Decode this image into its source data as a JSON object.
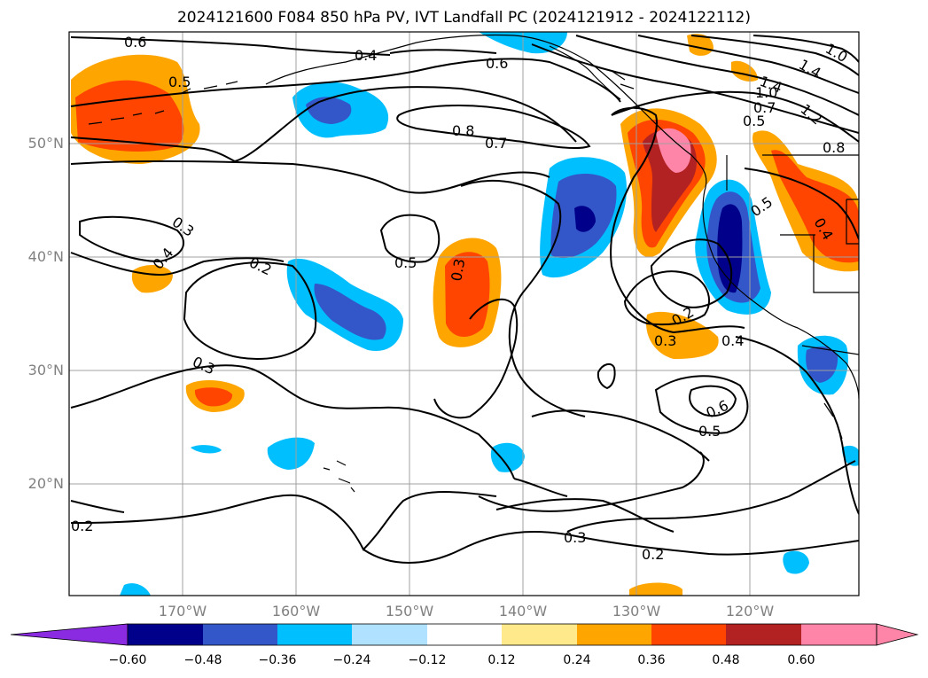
{
  "title": "2024121600 F084 850 hPa PV, IVT Landfall PC (2024121912 - 2024122112)",
  "lat_labels": [
    "50°N",
    "40°N",
    "30°N",
    "20°N"
  ],
  "lon_labels": [
    "170°W",
    "160°W",
    "150°W",
    "140°W",
    "130°W",
    "120°W"
  ],
  "colorbar": {
    "ticks": [
      "−0.60",
      "−0.48",
      "−0.36",
      "−0.24",
      "−0.12",
      "0.12",
      "0.24",
      "0.36",
      "0.48",
      "0.60"
    ],
    "colors": [
      "#8a2be2",
      "#00008b",
      "#3357c9",
      "#00bfff",
      "#b0e2ff",
      "#ffffff",
      "#ffe98a",
      "#ffa500",
      "#ff4500",
      "#b22222",
      "#ff85a8",
      "#ff85a8"
    ]
  },
  "contour_labels": [
    "0.6",
    "0.5",
    "0.4",
    "0.6",
    "0.8",
    "0.7",
    "0.3",
    "0.4",
    "0.2",
    "0.5",
    "0.3",
    "0.3",
    "0.2",
    "0.4",
    "0.3",
    "0.5",
    "0.6",
    "0.2",
    "0.3",
    "0.2",
    "1.4",
    "1.0",
    "0.7",
    "0.5",
    "1.2",
    "0.8",
    "1.4",
    "1.0",
    "0.5",
    "0.4"
  ],
  "colors": {
    "pos_low": "#ffe98a",
    "pos_mid": "#ffa500",
    "pos_high": "#ff4500",
    "pos_max": "#b22222",
    "pos_top": "#ff85a8",
    "neg_low": "#b0e2ff",
    "neg_mid": "#00bfff",
    "neg_high": "#3357c9",
    "neg_max": "#00008b"
  }
}
